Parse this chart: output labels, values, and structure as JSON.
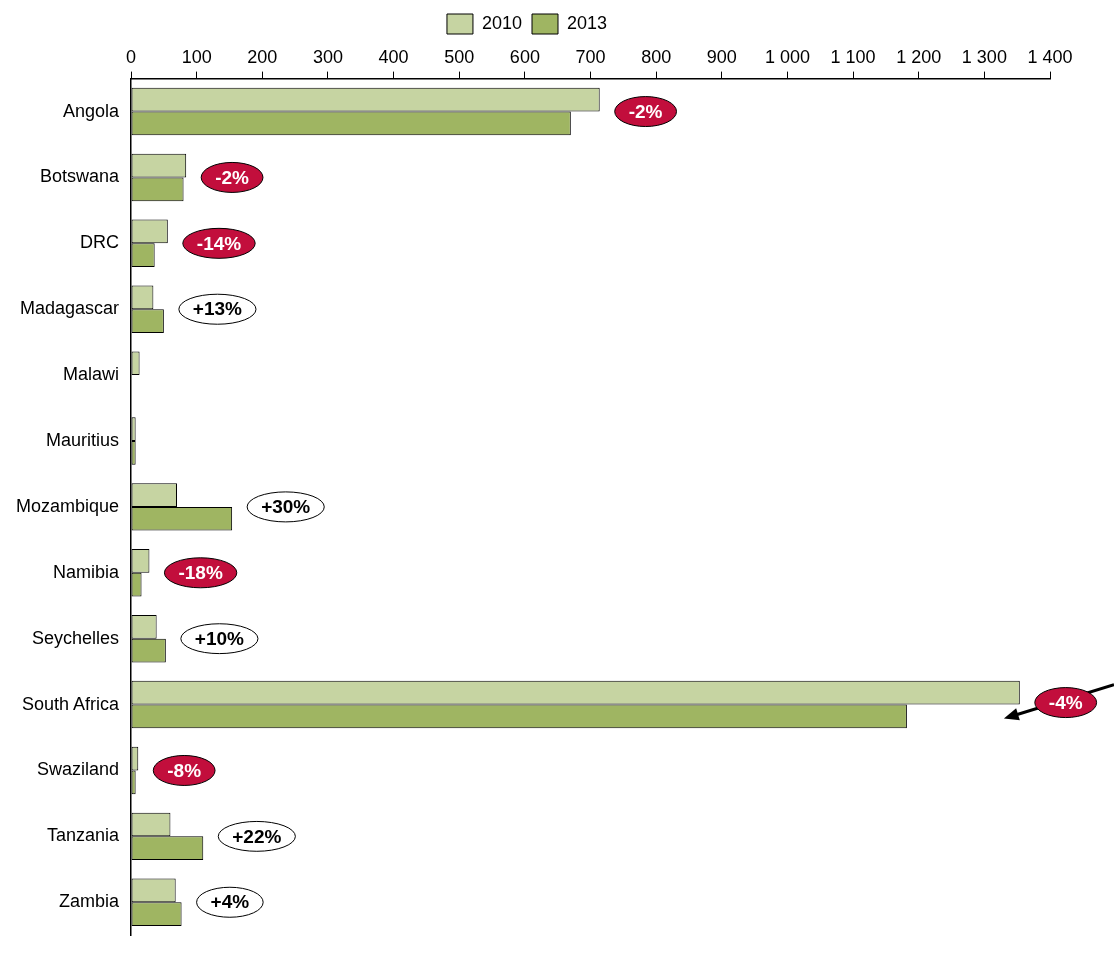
{
  "chart_data": {
    "type": "bar",
    "orientation": "horizontal",
    "categories": [
      "Angola",
      "Botswana",
      "DRC",
      "Madagascar",
      "Malawi",
      "Mauritius",
      "Mozambique",
      "Namibia",
      "Seychelles",
      "South Africa",
      "Swaziland",
      "Tanzania",
      "Zambia"
    ],
    "series": [
      {
        "name": "2010",
        "color": "#c6d4a2",
        "values": [
          714,
          84,
          56,
          34,
          13,
          7,
          70,
          28,
          39,
          1354,
          11,
          60,
          68
        ]
      },
      {
        "name": "2013",
        "color": "#9fb562",
        "values": [
          670,
          80,
          36,
          50,
          null,
          7,
          154,
          16,
          53,
          1182,
          7,
          110,
          77
        ]
      }
    ],
    "xlim": [
      0,
      1400
    ],
    "xticks": [
      0,
      100,
      200,
      300,
      400,
      500,
      600,
      700,
      800,
      900,
      {
        "value": 1000,
        "label": "1 000"
      },
      {
        "value": 1100,
        "label": "1 100"
      },
      {
        "value": 1200,
        "label": "1 200"
      },
      {
        "value": 1300,
        "label": "1 300"
      },
      {
        "value": 1400,
        "label": "1 400"
      }
    ],
    "grid": false,
    "legend": "top",
    "annotations": [
      {
        "text": "-2%",
        "x": 714,
        "y": "Angola"
      },
      {
        "text": "-2%",
        "x": 84,
        "y": "Botswana"
      },
      {
        "text": "-14%",
        "x": 56,
        "y": "DRC"
      },
      {
        "text": "+13%",
        "x": 50,
        "y": "Madagascar"
      },
      {
        "text": "+30%",
        "x": 154,
        "y": "Mozambique"
      },
      {
        "text": "-18%",
        "x": 28,
        "y": "Namibia"
      },
      {
        "text": "+10%",
        "x": 53,
        "y": "Seychelles"
      },
      {
        "text": "-4%",
        "x": 1354,
        "y": "South Africa"
      },
      {
        "text": "-8%",
        "x": 11,
        "y": "Swaziland"
      },
      {
        "text": "+22%",
        "x": 110,
        "y": "Tanzania"
      },
      {
        "text": "+4%",
        "x": 77,
        "y": "Zambia"
      }
    ]
  }
}
